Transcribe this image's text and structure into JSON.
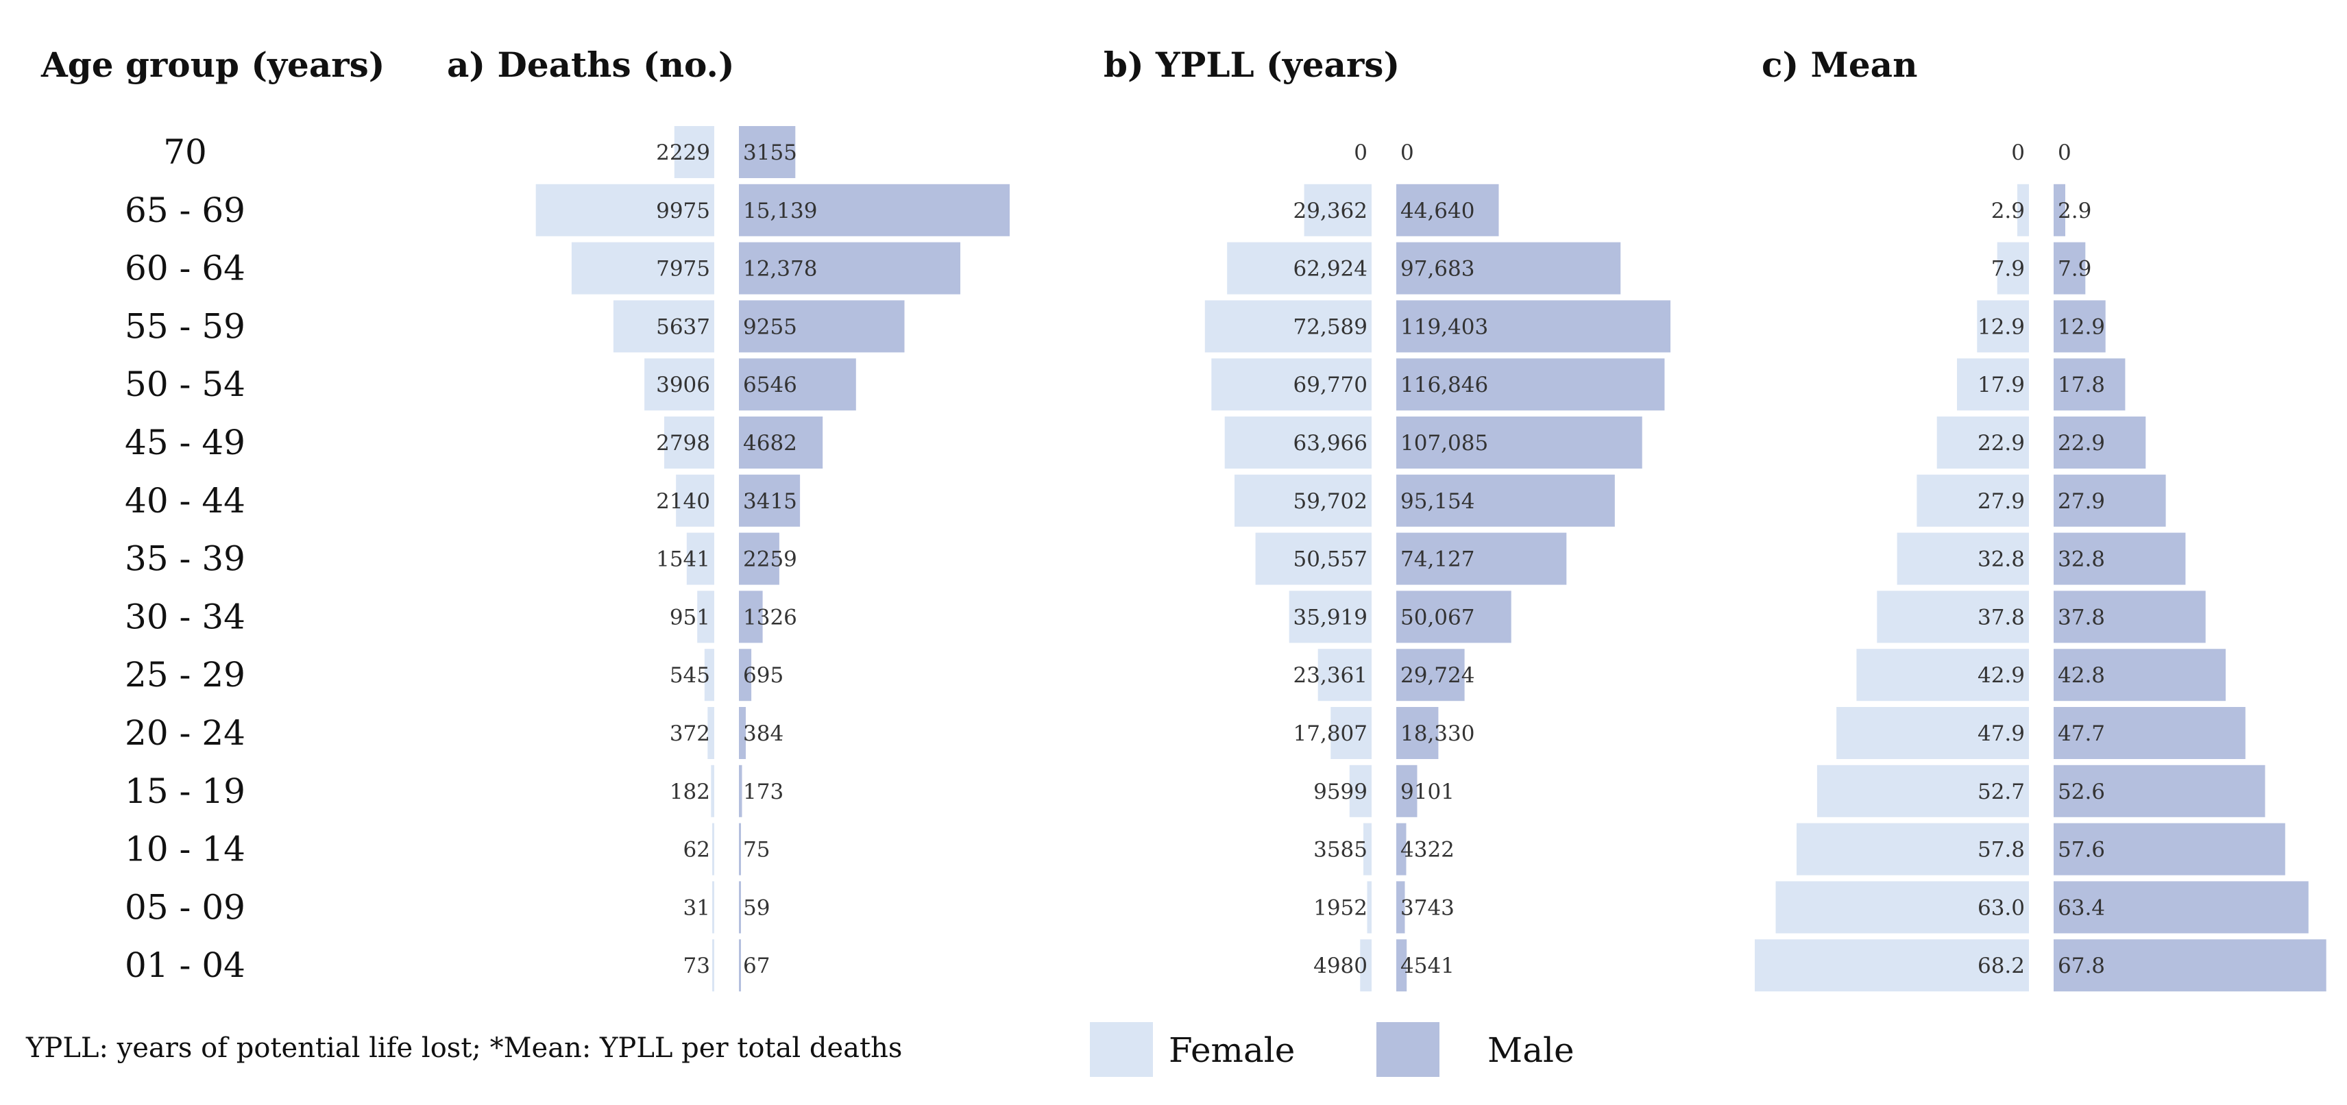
{
  "chart_data": [
    {
      "type": "bar",
      "orientation": "horizontal-butterfly",
      "title": "a) Deaths (no.)",
      "categories": [
        "70",
        "65 - 69",
        "60 - 64",
        "55 - 59",
        "50 - 54",
        "45 - 49",
        "40 - 44",
        "35 - 39",
        "30 - 34",
        "25 - 29",
        "20 - 24",
        "15 - 19",
        "10 - 14",
        "05 - 09",
        "01 - 04"
      ],
      "series": [
        {
          "name": "Female",
          "values": [
            2229,
            9975,
            7975,
            5637,
            3906,
            2798,
            2140,
            1541,
            951,
            545,
            372,
            182,
            62,
            31,
            73
          ],
          "labels": [
            "2229",
            "9975",
            "7975",
            "5637",
            "3906",
            "2798",
            "2140",
            "1541",
            "951",
            "545",
            "372",
            "182",
            "62",
            "31",
            "73"
          ]
        },
        {
          "name": "Male",
          "values": [
            3155,
            15139,
            12378,
            9255,
            6546,
            4682,
            3415,
            2259,
            1326,
            695,
            384,
            173,
            75,
            59,
            67
          ],
          "labels": [
            "3155",
            "15,139",
            "12,378",
            "9255",
            "6546",
            "4682",
            "3415",
            "2259",
            "1326",
            "695",
            "384",
            "173",
            "75",
            "59",
            "67"
          ]
        }
      ]
    },
    {
      "type": "bar",
      "orientation": "horizontal-butterfly",
      "title": "b) YPLL (years)",
      "categories": [
        "70",
        "65 - 69",
        "60 - 64",
        "55 - 59",
        "50 - 54",
        "45 - 49",
        "40 - 44",
        "35 - 39",
        "30 - 34",
        "25 - 29",
        "20 - 24",
        "15 - 19",
        "10 - 14",
        "05 - 09",
        "01 - 04"
      ],
      "series": [
        {
          "name": "Female",
          "values": [
            0,
            29362,
            62924,
            72589,
            69770,
            63966,
            59702,
            50557,
            35919,
            23361,
            17807,
            9599,
            3585,
            1952,
            4980
          ],
          "labels": [
            "0",
            "29,362",
            "62,924",
            "72,589",
            "69,770",
            "63,966",
            "59,702",
            "50,557",
            "35,919",
            "23,361",
            "17,807",
            "9599",
            "3585",
            "1952",
            "4980"
          ]
        },
        {
          "name": "Male",
          "values": [
            0,
            44640,
            97683,
            119403,
            116846,
            107085,
            95154,
            74127,
            50067,
            29724,
            18330,
            9101,
            4322,
            3743,
            4541
          ],
          "labels": [
            "0",
            "44,640",
            "97,683",
            "119,403",
            "116,846",
            "107,085",
            "95,154",
            "74,127",
            "50,067",
            "29,724",
            "18,330",
            "9101",
            "4322",
            "3743",
            "4541"
          ]
        }
      ]
    },
    {
      "type": "bar",
      "orientation": "horizontal-butterfly",
      "title": "c) Mean",
      "categories": [
        "70",
        "65 - 69",
        "60 - 64",
        "55 - 59",
        "50 - 54",
        "45 - 49",
        "40 - 44",
        "35 - 39",
        "30 - 34",
        "25 - 29",
        "20 - 24",
        "15 - 19",
        "10 - 14",
        "05 - 09",
        "01 - 04"
      ],
      "series": [
        {
          "name": "Female",
          "values": [
            0,
            2.9,
            7.9,
            12.9,
            17.9,
            22.9,
            27.9,
            32.8,
            37.8,
            42.9,
            47.9,
            52.7,
            57.8,
            63.0,
            68.2
          ],
          "labels": [
            "0",
            "2.9",
            "7.9",
            "12.9",
            "17.9",
            "22.9",
            "27.9",
            "32.8",
            "37.8",
            "42.9",
            "47.9",
            "52.7",
            "57.8",
            "63.0",
            "68.2"
          ]
        },
        {
          "name": "Male",
          "values": [
            0,
            2.9,
            7.9,
            12.9,
            17.8,
            22.9,
            27.9,
            32.8,
            37.8,
            42.8,
            47.7,
            52.6,
            57.6,
            63.4,
            67.8
          ],
          "labels": [
            "0",
            "2.9",
            "7.9",
            "12.9",
            "17.8",
            "22.9",
            "27.9",
            "32.8",
            "37.8",
            "42.8",
            "47.7",
            "52.6",
            "57.6",
            "63.4",
            "67.8"
          ]
        }
      ]
    }
  ],
  "age_group_header": "Age group (years)",
  "footnote": "YPLL: years of potential life lost; *Mean: YPLL per total deaths",
  "legend": [
    {
      "label": "Female",
      "color": "#dae5f4"
    },
    {
      "label": "Male",
      "color": "#b4bfde"
    }
  ],
  "colors": {
    "female": "#dae5f4",
    "male": "#b4bfde",
    "text": "#111111"
  }
}
